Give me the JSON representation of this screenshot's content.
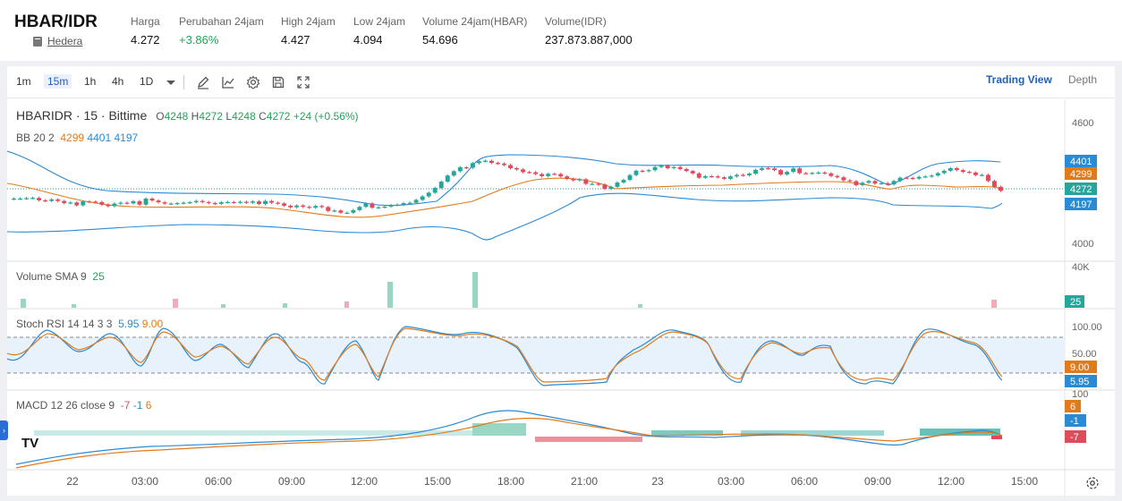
{
  "header": {
    "pair": "HBAR/IDR",
    "name": "Hedera",
    "stats": [
      {
        "label": "Harga",
        "value": "4.272",
        "up": false
      },
      {
        "label": "Perubahan 24jam",
        "value": "+3.86%",
        "up": true
      },
      {
        "label": "High 24jam",
        "value": "4.427",
        "up": false
      },
      {
        "label": "Low 24jam",
        "value": "4.094",
        "up": false
      },
      {
        "label": "Volume 24jam(HBAR)",
        "value": "54.696",
        "up": false
      },
      {
        "label": "Volume(IDR)",
        "value": "237.873.887,000",
        "up": false
      }
    ]
  },
  "toolbar": {
    "timeframes": [
      "1m",
      "15m",
      "1h",
      "4h",
      "1D"
    ],
    "active_timeframe": "15m",
    "tools": [
      "pencil-icon",
      "line-chart-icon",
      "gear-icon",
      "save-icon",
      "fullscreen-icon"
    ],
    "trading_view_label": "Trading View",
    "depth_label": "Depth"
  },
  "chart": {
    "symbol": "HBARIDR · 15 · Bittime",
    "ohlc": {
      "o_label": "O",
      "o": "4248",
      "h_label": "H",
      "h": "4272",
      "l_label": "L",
      "l": "4248",
      "c_label": "C",
      "c": "4272",
      "change": "+24 (+0.56%)"
    },
    "bb_label": "BB 20 2",
    "bb_values": [
      "4299",
      "4401",
      "4197"
    ],
    "volume_label": "Volume SMA 9",
    "volume_value": "25",
    "stoch_label": "Stoch RSI 14 14 3 3",
    "stoch_values": [
      "5.95",
      "9.00"
    ],
    "macd_label": "MACD 12 26 close 9",
    "macd_values": [
      "-7",
      "-1",
      "6"
    ],
    "price_axis": [
      "4600",
      "4000"
    ],
    "price_tags": {
      "upper": "4401",
      "mid": "4299",
      "last": "4272",
      "lower": "4197"
    },
    "volume_axis": [
      "40K"
    ],
    "volume_tag": "25",
    "stoch_axis": [
      "100.00",
      "50.00",
      "100"
    ],
    "stoch_tags": {
      "d": "9.00",
      "k": "5.95"
    },
    "macd_tags": {
      "hist": "6",
      "signal": "-1",
      "macd": "-7"
    },
    "time_axis": [
      "22",
      "03:00",
      "06:00",
      "09:00",
      "12:00",
      "15:00",
      "18:00",
      "21:00",
      "23",
      "03:00",
      "06:00",
      "09:00",
      "12:00",
      "15:00"
    ],
    "logo_text": "TV",
    "side_tab": "›"
  },
  "colors": {
    "up": "#26a69a",
    "down": "#e04a5a",
    "bb": "#2a8ad4",
    "basis": "#e07b1c",
    "accent": "#1f5fbf"
  },
  "chart_data": {
    "type": "candlestick",
    "title": "HBARIDR · 15 · Bittime",
    "ylim": [
      3960,
      4660
    ],
    "series": [
      {
        "name": "close",
        "values": [
          4236,
          4236,
          4238,
          4239,
          4228,
          4225,
          4232,
          4225,
          4215,
          4218,
          4205,
          4223,
          4222,
          4220,
          4208,
          4201,
          4213,
          4217,
          4214,
          4224,
          4208,
          4236,
          4227,
          4219,
          4213,
          4213,
          4215,
          4217,
          4219,
          4225,
          4220,
          4215,
          4212,
          4219,
          4220,
          4218,
          4221,
          4217,
          4223,
          4211,
          4225,
          4217,
          4214,
          4203,
          4196,
          4204,
          4198,
          4194,
          4202,
          4197,
          4179,
          4181,
          4171,
          4171,
          4183,
          4198,
          4214,
          4194,
          4196,
          4199,
          4206,
          4208,
          4215,
          4217,
          4230,
          4246,
          4263,
          4285,
          4314,
          4342,
          4362,
          4380,
          4378,
          4399,
          4408,
          4410,
          4400,
          4397,
          4390,
          4376,
          4370,
          4358,
          4357,
          4349,
          4339,
          4350,
          4349,
          4338,
          4327,
          4320,
          4325,
          4304,
          4304,
          4301,
          4281,
          4290,
          4310,
          4322,
          4344,
          4364,
          4362,
          4367,
          4381,
          4388,
          4376,
          4381,
          4372,
          4363,
          4352,
          4332,
          4339,
          4338,
          4334,
          4327,
          4338,
          4345,
          4343,
          4351,
          4368,
          4376,
          4375,
          4367,
          4347,
          4359,
          4375,
          4353,
          4352,
          4354,
          4356,
          4352,
          4340,
          4334,
          4320,
          4316,
          4298,
          4309,
          4317,
          4305,
          4307,
          4301,
          4317,
          4332,
          4331,
          4328,
          4336,
          4338,
          4342,
          4353,
          4364,
          4376,
          4367,
          4359,
          4356,
          4344,
          4345,
          4317,
          4290,
          4272
        ]
      },
      {
        "name": "BB upper",
        "values": [
          4401
        ]
      },
      {
        "name": "BB basis",
        "values": [
          4299
        ]
      },
      {
        "name": "BB lower",
        "values": [
          4197
        ]
      }
    ]
  }
}
